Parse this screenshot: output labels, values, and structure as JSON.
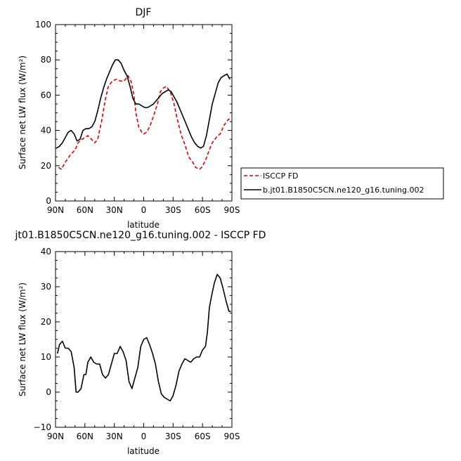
{
  "chart_data": [
    {
      "type": "line",
      "title": "DJF",
      "xlabel": "latitude",
      "ylabel": "Surface net LW flux (W/m²)",
      "xlim": [
        90,
        -90
      ],
      "ylim": [
        0,
        100
      ],
      "xticks": [
        90,
        60,
        30,
        0,
        -30,
        -60,
        -90
      ],
      "xtick_labels": [
        "90N",
        "60N",
        "30N",
        "0",
        "30S",
        "60S",
        "90S"
      ],
      "yticks": [
        0,
        20,
        40,
        60,
        80,
        100
      ],
      "ytick_labels": [
        "0",
        "20",
        "40",
        "60",
        "80",
        "100"
      ],
      "grid": false,
      "legend": {
        "placement": "right",
        "entries": [
          "ISCCP FD",
          "b.jt01.B1850C5CN.ne120_g16.tuning.002"
        ]
      },
      "series": [
        {
          "name": "ISCCP FD",
          "color": "#dd0000",
          "style": "dashed",
          "x": [
            87,
            84,
            80,
            75,
            70,
            67,
            63,
            60,
            57,
            55,
            50,
            47,
            43,
            39,
            36,
            32,
            28,
            24,
            20,
            16,
            13,
            10,
            8,
            5,
            2,
            0,
            -3,
            -6,
            -10,
            -14,
            -17,
            -20,
            -23,
            -27,
            -31,
            -34,
            -38,
            -42,
            -46,
            -50,
            -53,
            -57,
            -59,
            -61,
            -63,
            -67,
            -70,
            -74,
            -78,
            -82,
            -86,
            -89
          ],
          "y": [
            19,
            18,
            22,
            26,
            29,
            33,
            35,
            36,
            37,
            36,
            33,
            35,
            45,
            58,
            65,
            68,
            69,
            68,
            68,
            71,
            68,
            60,
            50,
            42,
            39,
            38,
            39,
            42,
            48,
            55,
            62,
            64,
            65,
            62,
            55,
            47,
            38,
            32,
            25,
            22,
            19,
            18,
            19,
            21,
            23,
            29,
            33,
            36,
            38,
            43,
            46,
            47
          ]
        },
        {
          "name": "b.jt01.B1850C5CN.ne120_g16.tuning.002",
          "color": "#000000",
          "style": "solid",
          "x": [
            89,
            86,
            83,
            80,
            77,
            74,
            71,
            68,
            65,
            62,
            59,
            56,
            53,
            50,
            47,
            44,
            41,
            38,
            35,
            32,
            29,
            26,
            23,
            20,
            17,
            14,
            11,
            8,
            5,
            2,
            -1,
            -4,
            -7,
            -10,
            -13,
            -16,
            -19,
            -22,
            -25,
            -28,
            -31,
            -34,
            -37,
            -40,
            -43,
            -46,
            -49,
            -52,
            -55,
            -58,
            -61,
            -64,
            -67,
            -70,
            -73,
            -76,
            -79,
            -82,
            -85,
            -88
          ],
          "y": [
            30,
            31,
            33,
            36,
            39,
            40,
            38,
            34,
            35,
            40,
            41,
            41,
            42,
            45,
            51,
            58,
            64,
            69,
            73,
            77,
            80,
            80,
            78,
            74,
            71,
            65,
            58,
            55,
            55,
            54,
            53,
            53,
            54,
            55,
            57,
            59,
            61,
            62,
            63,
            62,
            59,
            56,
            52,
            48,
            44,
            40,
            36,
            33,
            31,
            30,
            31,
            37,
            46,
            55,
            61,
            67,
            70,
            71,
            72,
            69
          ]
        }
      ]
    },
    {
      "type": "line",
      "title": "jt01.B1850C5CN.ne120_g16.tuning.002 - ISCCP FD",
      "xlabel": "latitude",
      "ylabel": "Surface net LW flux (W/m²)",
      "xlim": [
        90,
        -90
      ],
      "ylim": [
        -10,
        40
      ],
      "xticks": [
        90,
        60,
        30,
        0,
        -30,
        -60,
        -90
      ],
      "xtick_labels": [
        "90N",
        "60N",
        "30N",
        "0",
        "30S",
        "60S",
        "90S"
      ],
      "yticks": [
        -10,
        0,
        10,
        20,
        30,
        40
      ],
      "ytick_labels": [
        "−10",
        "0",
        "10",
        "20",
        "30",
        "40"
      ],
      "grid": false,
      "series": [
        {
          "color": "#000000",
          "style": "solid",
          "x": [
            88,
            86,
            83,
            80,
            77,
            74,
            71,
            69,
            67,
            64,
            61,
            59,
            57,
            54,
            51,
            48,
            45,
            42,
            39,
            36,
            33,
            30,
            27,
            24,
            21,
            18,
            15,
            12,
            9,
            6,
            3,
            0,
            -3,
            -6,
            -9,
            -12,
            -15,
            -18,
            -21,
            -24,
            -27,
            -30,
            -33,
            -36,
            -39,
            -42,
            -45,
            -48,
            -51,
            -54,
            -57,
            -60,
            -63,
            -65,
            -67,
            -69,
            -72,
            -75,
            -78,
            -81,
            -84,
            -87,
            -89
          ],
          "y": [
            11,
            13.5,
            14.5,
            12.5,
            12.5,
            11.5,
            7,
            0,
            0,
            1,
            5,
            5,
            8.5,
            10,
            8.5,
            8,
            8,
            5,
            4,
            5,
            8,
            11,
            11,
            13,
            11.5,
            9,
            3,
            1,
            4,
            7,
            13,
            15,
            15.5,
            13.5,
            11,
            8,
            3,
            -0.5,
            -1.5,
            -2,
            -2.5,
            -1,
            2,
            6,
            8,
            9.5,
            9,
            8.5,
            9.5,
            10,
            10,
            12,
            13,
            17,
            24,
            27,
            31,
            33.5,
            32.5,
            29.5,
            26,
            23,
            23
          ]
        }
      ]
    }
  ]
}
